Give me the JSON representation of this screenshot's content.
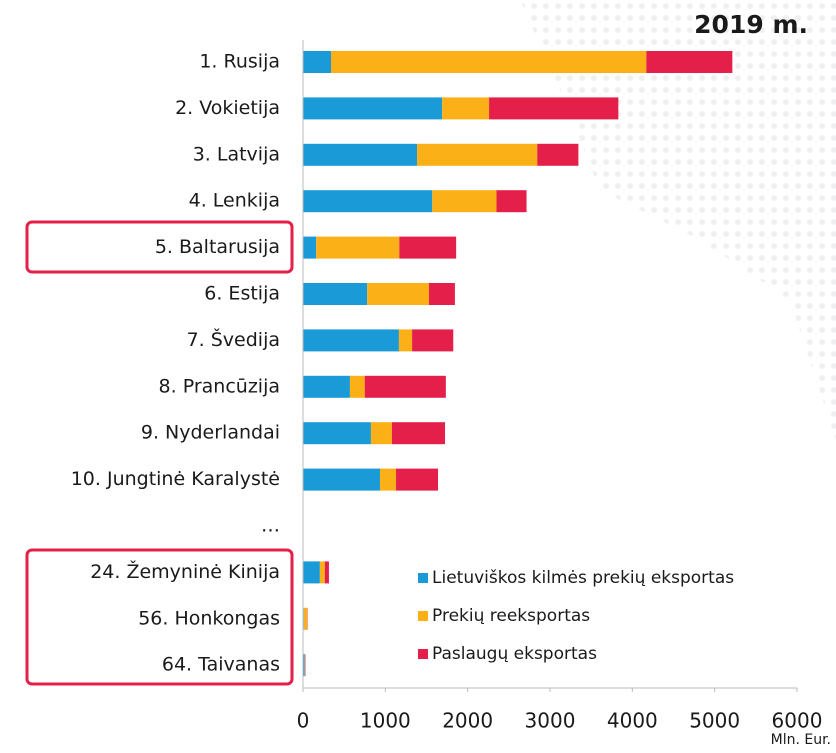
{
  "chart_data": {
    "type": "stacked-bar-horizontal",
    "title": "2019 m.",
    "x_unit": "Mln. Eur.",
    "categories": [
      "1. Rusija",
      "2. Vokietija",
      "3. Latvija",
      "4. Lenkija",
      "5. Baltarusija",
      "6. Estija",
      "7. Švedija",
      "8. Prancūzija",
      "9. Nyderlandai",
      "10. Jungtinė Karalystė",
      "…",
      "24. Žemyninė Kinija",
      "56. Honkongas",
      "64. Taivanas"
    ],
    "series": [
      {
        "name": "Lietuviškos kilmės prekių eksportas",
        "color": "#1a9ad6",
        "values": [
          340,
          1690,
          1385,
          1570,
          160,
          780,
          1165,
          570,
          825,
          935,
          null,
          205,
          10,
          20
        ]
      },
      {
        "name": "Prekių reeksportas",
        "color": "#fbb017",
        "values": [
          3830,
          570,
          1460,
          780,
          1010,
          750,
          160,
          180,
          255,
          195,
          null,
          60,
          40,
          5
        ]
      },
      {
        "name": "Paslaugų eksportas",
        "color": "#e41f4a",
        "values": [
          1045,
          1570,
          500,
          365,
          690,
          315,
          500,
          985,
          645,
          510,
          null,
          50,
          5,
          5
        ]
      }
    ],
    "xlim": [
      0,
      6000
    ],
    "xticks": [
      0,
      1000,
      2000,
      3000,
      4000,
      5000,
      6000
    ],
    "legend": "lower right"
  }
}
